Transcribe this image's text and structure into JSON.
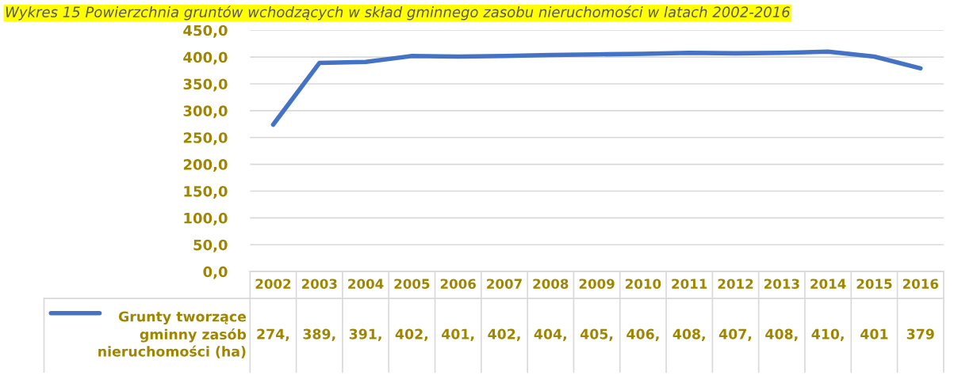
{
  "chart_data": {
    "type": "line",
    "title": "Wykres 15 Powierzchnia gruntów wchodzących w skład gminnego zasobu nieruchomości w latach 2002-2016",
    "categories": [
      "2002",
      "2003",
      "2004",
      "2005",
      "2006",
      "2007",
      "2008",
      "2009",
      "2010",
      "2011",
      "2012",
      "2013",
      "2014",
      "2015",
      "2016"
    ],
    "series": [
      {
        "name": "Grunty tworzące gminny zasób nieruchomości (ha)",
        "color": "#4472c4",
        "values": [
          274,
          389,
          391,
          402,
          401,
          402,
          404,
          405,
          406,
          408,
          407,
          408,
          410,
          401,
          379
        ],
        "value_labels": [
          "274,",
          "389,",
          "391,",
          "402,",
          "401,",
          "402,",
          "404,",
          "405,",
          "406,",
          "408,",
          "407,",
          "408,",
          "410,",
          "401",
          "379"
        ]
      }
    ],
    "ylim": [
      0,
      450
    ],
    "yticks": [
      {
        "value": 0,
        "label": "0,0"
      },
      {
        "value": 50,
        "label": "50,0"
      },
      {
        "value": 100,
        "label": "100,0"
      },
      {
        "value": 150,
        "label": "150,0"
      },
      {
        "value": 200,
        "label": "200,0"
      },
      {
        "value": 250,
        "label": "250,0"
      },
      {
        "value": 300,
        "label": "300,0"
      },
      {
        "value": 350,
        "label": "350,0"
      },
      {
        "value": 400,
        "label": "400,0"
      },
      {
        "value": 450,
        "label": "450,0"
      }
    ],
    "grid": "y",
    "marker": "none",
    "line_style": "solid"
  }
}
